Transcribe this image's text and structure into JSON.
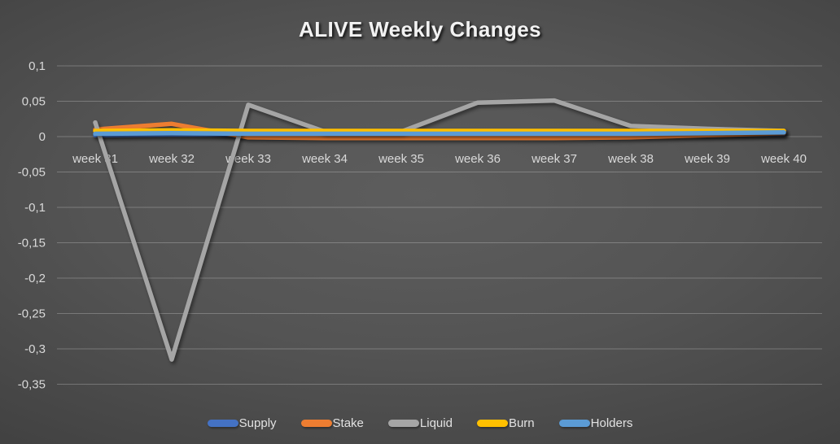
{
  "chart_data": {
    "type": "line",
    "title": "ALIVE Weekly Changes",
    "categories": [
      "week 31",
      "week 32",
      "week 33",
      "week 34",
      "week 35",
      "week 36",
      "week 37",
      "week 38",
      "week 39",
      "week 40"
    ],
    "series": [
      {
        "name": "Supply",
        "color": "#4472C4",
        "values": [
          0.002,
          0.003,
          0.003,
          0.003,
          0.003,
          0.003,
          0.003,
          0.003,
          0.003,
          0.004
        ]
      },
      {
        "name": "Stake",
        "color": "#ED7D31",
        "values": [
          0.01,
          0.018,
          -0.001,
          -0.002,
          -0.002,
          -0.002,
          -0.002,
          -0.001,
          0.002,
          0.005
        ]
      },
      {
        "name": "Liquid",
        "color": "#A5A5A5",
        "values": [
          0.02,
          -0.315,
          0.045,
          0.007,
          0.007,
          0.048,
          0.051,
          0.015,
          0.011,
          0.008
        ]
      },
      {
        "name": "Burn",
        "color": "#FFC000",
        "values": [
          0.008,
          0.009,
          0.008,
          0.008,
          0.008,
          0.008,
          0.008,
          0.008,
          0.008,
          0.008
        ]
      },
      {
        "name": "Holders",
        "color": "#5B9BD5",
        "values": [
          0.004,
          0.005,
          0.004,
          0.004,
          0.004,
          0.004,
          0.004,
          0.004,
          0.005,
          0.006
        ]
      }
    ],
    "y_axis": {
      "min": -0.35,
      "max": 0.1,
      "step": 0.05,
      "tick_labels": [
        "0,1",
        "0,05",
        "0",
        "-0,05",
        "-0,1",
        "-0,15",
        "-0,2",
        "-0,25",
        "-0,3",
        "-0,35"
      ]
    },
    "grid": true,
    "legend_position": "bottom",
    "x_label_row": "just below zero line"
  }
}
